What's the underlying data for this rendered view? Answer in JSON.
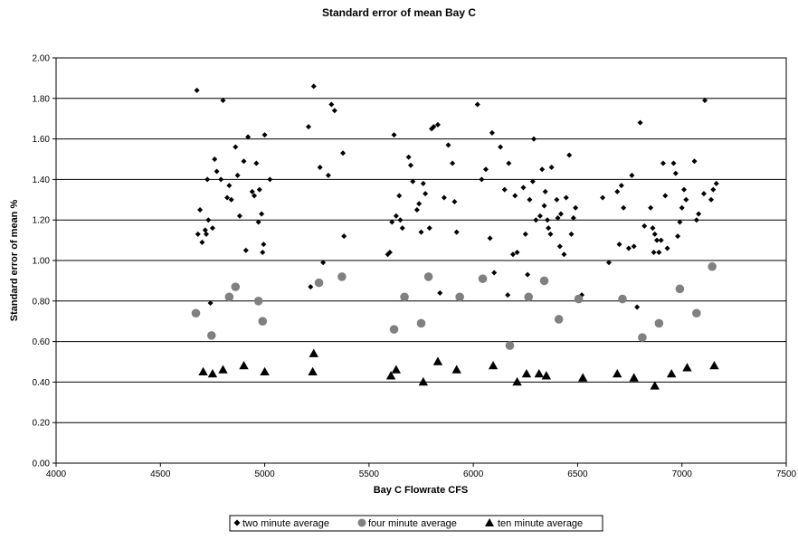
{
  "chart_data": {
    "type": "scatter",
    "title": "Standard error of mean Bay C",
    "xlabel": "Bay C Flowrate CFS",
    "ylabel": "Standard error of mean %",
    "xlim": [
      4000,
      7500
    ],
    "ylim": [
      0,
      2
    ],
    "x_ticks": [
      "4000",
      "4500",
      "5000",
      "5500",
      "6000",
      "6500",
      "7000",
      "7500"
    ],
    "y_ticks": [
      "0.00",
      "0.20",
      "0.40",
      "0.60",
      "0.80",
      "1.00",
      "1.20",
      "1.40",
      "1.60",
      "1.80",
      "2.00"
    ],
    "grid": "horizontal",
    "legend_position": "bottom",
    "series": [
      {
        "name": "two minute average",
        "marker": "diamond",
        "color": "#000000",
        "points": [
          [
            4675,
            1.84
          ],
          [
            4680,
            1.13
          ],
          [
            4690,
            1.25
          ],
          [
            4700,
            1.09
          ],
          [
            4715,
            1.15
          ],
          [
            4720,
            1.13
          ],
          [
            4725,
            1.4
          ],
          [
            4730,
            1.2
          ],
          [
            4740,
            0.79
          ],
          [
            4750,
            1.16
          ],
          [
            4760,
            1.5
          ],
          [
            4770,
            1.44
          ],
          [
            4790,
            1.4
          ],
          [
            4800,
            1.79
          ],
          [
            4820,
            1.31
          ],
          [
            4830,
            1.37
          ],
          [
            4840,
            1.3
          ],
          [
            4860,
            1.56
          ],
          [
            4870,
            1.42
          ],
          [
            4880,
            1.22
          ],
          [
            4900,
            1.49
          ],
          [
            4910,
            1.05
          ],
          [
            4920,
            1.61
          ],
          [
            4940,
            1.34
          ],
          [
            4950,
            1.32
          ],
          [
            4960,
            1.48
          ],
          [
            4970,
            1.19
          ],
          [
            4975,
            1.35
          ],
          [
            4985,
            1.23
          ],
          [
            4990,
            1.04
          ],
          [
            4995,
            1.08
          ],
          [
            5000,
            1.62
          ],
          [
            5025,
            1.4
          ],
          [
            5210,
            1.66
          ],
          [
            5220,
            0.87
          ],
          [
            5235,
            1.86
          ],
          [
            5265,
            1.46
          ],
          [
            5280,
            0.99
          ],
          [
            5305,
            1.42
          ],
          [
            5320,
            1.77
          ],
          [
            5335,
            1.74
          ],
          [
            5375,
            1.53
          ],
          [
            5380,
            1.12
          ],
          [
            5590,
            1.03
          ],
          [
            5600,
            1.04
          ],
          [
            5610,
            1.19
          ],
          [
            5620,
            1.62
          ],
          [
            5630,
            1.22
          ],
          [
            5645,
            1.32
          ],
          [
            5650,
            1.2
          ],
          [
            5660,
            1.16
          ],
          [
            5690,
            1.51
          ],
          [
            5700,
            1.47
          ],
          [
            5710,
            1.39
          ],
          [
            5730,
            1.25
          ],
          [
            5740,
            1.28
          ],
          [
            5750,
            1.14
          ],
          [
            5760,
            1.38
          ],
          [
            5770,
            1.33
          ],
          [
            5780,
            0.92
          ],
          [
            5790,
            1.16
          ],
          [
            5800,
            1.65
          ],
          [
            5810,
            1.66
          ],
          [
            5830,
            1.67
          ],
          [
            5840,
            0.84
          ],
          [
            5860,
            1.31
          ],
          [
            5880,
            1.57
          ],
          [
            5900,
            1.48
          ],
          [
            5910,
            1.29
          ],
          [
            5920,
            1.14
          ],
          [
            6020,
            1.77
          ],
          [
            6040,
            1.4
          ],
          [
            6060,
            1.45
          ],
          [
            6080,
            1.11
          ],
          [
            6090,
            1.63
          ],
          [
            6100,
            0.94
          ],
          [
            6130,
            1.56
          ],
          [
            6150,
            1.35
          ],
          [
            6165,
            0.83
          ],
          [
            6170,
            1.48
          ],
          [
            6190,
            1.03
          ],
          [
            6200,
            1.32
          ],
          [
            6210,
            1.04
          ],
          [
            6240,
            1.36
          ],
          [
            6250,
            1.13
          ],
          [
            6260,
            0.93
          ],
          [
            6270,
            1.3
          ],
          [
            6285,
            1.39
          ],
          [
            6290,
            1.6
          ],
          [
            6300,
            1.2
          ],
          [
            6320,
            1.22
          ],
          [
            6330,
            1.45
          ],
          [
            6340,
            1.27
          ],
          [
            6345,
            1.34
          ],
          [
            6355,
            1.2
          ],
          [
            6360,
            1.16
          ],
          [
            6370,
            1.13
          ],
          [
            6375,
            1.46
          ],
          [
            6400,
            1.3
          ],
          [
            6405,
            1.21
          ],
          [
            6415,
            1.07
          ],
          [
            6420,
            1.23
          ],
          [
            6435,
            1.03
          ],
          [
            6445,
            1.31
          ],
          [
            6460,
            1.52
          ],
          [
            6470,
            1.13
          ],
          [
            6480,
            1.21
          ],
          [
            6490,
            1.26
          ],
          [
            6520,
            0.83
          ],
          [
            6620,
            1.31
          ],
          [
            6650,
            0.99
          ],
          [
            6690,
            1.34
          ],
          [
            6700,
            1.08
          ],
          [
            6710,
            1.37
          ],
          [
            6720,
            1.26
          ],
          [
            6745,
            1.06
          ],
          [
            6760,
            1.42
          ],
          [
            6770,
            1.07
          ],
          [
            6785,
            0.77
          ],
          [
            6800,
            1.68
          ],
          [
            6820,
            1.17
          ],
          [
            6850,
            1.26
          ],
          [
            6860,
            1.16
          ],
          [
            6865,
            1.04
          ],
          [
            6870,
            1.13
          ],
          [
            6880,
            1.1
          ],
          [
            6890,
            1.04
          ],
          [
            6900,
            1.1
          ],
          [
            6910,
            1.48
          ],
          [
            6920,
            1.32
          ],
          [
            6930,
            1.06
          ],
          [
            6960,
            1.48
          ],
          [
            6970,
            1.43
          ],
          [
            6980,
            1.12
          ],
          [
            6990,
            1.19
          ],
          [
            7000,
            1.26
          ],
          [
            7010,
            1.35
          ],
          [
            7020,
            1.3
          ],
          [
            7060,
            1.49
          ],
          [
            7070,
            1.2
          ],
          [
            7080,
            1.23
          ],
          [
            7105,
            1.33
          ],
          [
            7110,
            1.79
          ],
          [
            7140,
            1.3
          ],
          [
            7150,
            1.35
          ],
          [
            7165,
            1.38
          ]
        ]
      },
      {
        "name": "four minute average",
        "marker": "circle",
        "color": "#808080",
        "points": [
          [
            4670,
            0.74
          ],
          [
            4745,
            0.63
          ],
          [
            4830,
            0.82
          ],
          [
            4860,
            0.87
          ],
          [
            4970,
            0.8
          ],
          [
            4990,
            0.7
          ],
          [
            5260,
            0.89
          ],
          [
            5370,
            0.92
          ],
          [
            5620,
            0.66
          ],
          [
            5670,
            0.82
          ],
          [
            5750,
            0.69
          ],
          [
            5785,
            0.92
          ],
          [
            5935,
            0.82
          ],
          [
            6045,
            0.91
          ],
          [
            6175,
            0.58
          ],
          [
            6265,
            0.82
          ],
          [
            6340,
            0.9
          ],
          [
            6410,
            0.71
          ],
          [
            6505,
            0.81
          ],
          [
            6715,
            0.81
          ],
          [
            6810,
            0.62
          ],
          [
            6890,
            0.69
          ],
          [
            6990,
            0.86
          ],
          [
            7070,
            0.74
          ],
          [
            7145,
            0.97
          ]
        ]
      },
      {
        "name": "ten minute average",
        "marker": "triangle",
        "color": "#000000",
        "points": [
          [
            4705,
            0.45
          ],
          [
            4750,
            0.44
          ],
          [
            4800,
            0.46
          ],
          [
            4900,
            0.48
          ],
          [
            5000,
            0.45
          ],
          [
            5230,
            0.45
          ],
          [
            5235,
            0.54
          ],
          [
            5605,
            0.43
          ],
          [
            5630,
            0.46
          ],
          [
            5760,
            0.4
          ],
          [
            5830,
            0.5
          ],
          [
            5920,
            0.46
          ],
          [
            6095,
            0.48
          ],
          [
            6210,
            0.4
          ],
          [
            6255,
            0.44
          ],
          [
            6315,
            0.44
          ],
          [
            6350,
            0.43
          ],
          [
            6525,
            0.42
          ],
          [
            6690,
            0.44
          ],
          [
            6770,
            0.42
          ],
          [
            6870,
            0.38
          ],
          [
            6950,
            0.44
          ],
          [
            7025,
            0.47
          ],
          [
            7155,
            0.48
          ]
        ]
      }
    ]
  }
}
